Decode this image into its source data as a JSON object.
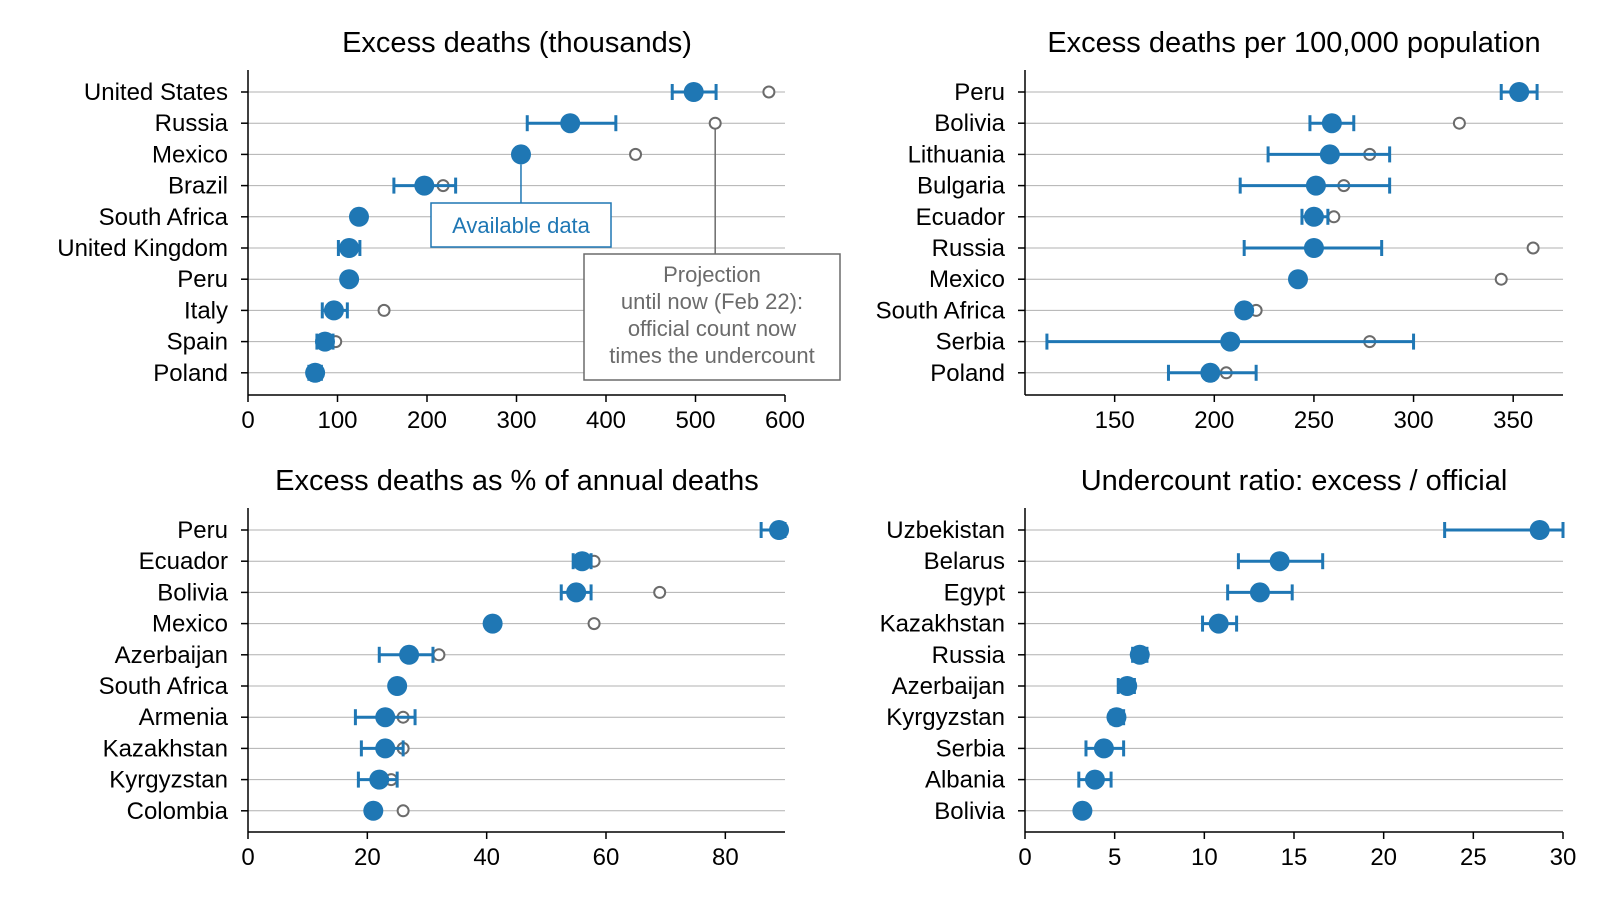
{
  "colors": {
    "available": "#1f77b4",
    "projection": "#6b6b6b",
    "grid": "#b0b0b0"
  },
  "chart_data": [
    {
      "type": "scatter",
      "title": "Excess deaths (thousands)",
      "xlim": [
        0,
        600
      ],
      "xticks": [
        0,
        100,
        200,
        300,
        400,
        500,
        600
      ],
      "categories": [
        "United States",
        "Russia",
        "Mexico",
        "Brazil",
        "South Africa",
        "United Kingdom",
        "Peru",
        "Italy",
        "Spain",
        "Poland"
      ],
      "series": [
        {
          "name": "Available data",
          "values": [
            498,
            360,
            305,
            197,
            124,
            113,
            113,
            96,
            86,
            75
          ],
          "error_low": [
            474,
            312,
            null,
            163,
            null,
            101,
            null,
            83,
            77,
            68
          ],
          "error_high": [
            523,
            411,
            null,
            232,
            null,
            125,
            null,
            111,
            95,
            82
          ]
        },
        {
          "name": "Projection until now (Feb 22): official count now times the undercount",
          "values": [
            582,
            522,
            433,
            218,
            null,
            null,
            null,
            152,
            98,
            null
          ]
        }
      ],
      "annotations": [
        {
          "text": "Available data",
          "points_to": "Mexico"
        },
        {
          "text": [
            "Projection",
            "until now (Feb 22):",
            "official count now",
            "times the undercount"
          ],
          "points_to": "Russia"
        }
      ]
    },
    {
      "type": "scatter",
      "title": "Excess deaths per 100,000 population",
      "xlim": [
        105,
        375
      ],
      "xticks": [
        150,
        200,
        250,
        300,
        350
      ],
      "categories": [
        "Peru",
        "Bolivia",
        "Lithuania",
        "Bulgaria",
        "Ecuador",
        "Russia",
        "Mexico",
        "South Africa",
        "Serbia",
        "Poland"
      ],
      "series": [
        {
          "name": "Available data",
          "values": [
            353,
            259,
            258,
            251,
            250,
            250,
            242,
            215,
            208,
            198
          ],
          "error_low": [
            344,
            248,
            227,
            213,
            244,
            215,
            null,
            null,
            116,
            177
          ],
          "error_high": [
            362,
            270,
            288,
            288,
            257,
            284,
            null,
            null,
            300,
            221
          ]
        },
        {
          "name": "Projection",
          "values": [
            null,
            323,
            278,
            265,
            260,
            360,
            344,
            221,
            278,
            206
          ]
        }
      ]
    },
    {
      "type": "scatter",
      "title": "Excess deaths as % of annual deaths",
      "xlim": [
        0,
        90
      ],
      "xticks": [
        0,
        20,
        40,
        60,
        80
      ],
      "categories": [
        "Peru",
        "Ecuador",
        "Bolivia",
        "Mexico",
        "Azerbaijan",
        "South Africa",
        "Armenia",
        "Kazakhstan",
        "Kyrgyzstan",
        "Colombia"
      ],
      "series": [
        {
          "name": "Available data",
          "values": [
            89,
            56,
            55,
            41,
            27,
            25,
            23,
            23,
            22,
            21
          ],
          "error_low": [
            86,
            54.5,
            52.5,
            null,
            22,
            null,
            18,
            19,
            18.5,
            null
          ],
          "error_high": [
            90,
            57.5,
            57.5,
            null,
            31,
            null,
            28,
            26,
            25,
            null
          ]
        },
        {
          "name": "Projection",
          "values": [
            null,
            58,
            69,
            58,
            32,
            null,
            26,
            26,
            24,
            26
          ]
        }
      ]
    },
    {
      "type": "scatter",
      "title": "Undercount ratio: excess / official",
      "xlim": [
        0,
        30
      ],
      "xticks": [
        0,
        5,
        10,
        15,
        20,
        25,
        30
      ],
      "categories": [
        "Uzbekistan",
        "Belarus",
        "Egypt",
        "Kazakhstan",
        "Russia",
        "Azerbaijan",
        "Kyrgyzstan",
        "Serbia",
        "Albania",
        "Bolivia"
      ],
      "series": [
        {
          "name": "Available data",
          "values": [
            28.7,
            14.2,
            13.1,
            10.8,
            6.4,
            5.7,
            5.1,
            4.4,
            3.9,
            3.2
          ],
          "error_low": [
            23.4,
            11.9,
            11.3,
            9.9,
            6.0,
            5.2,
            4.8,
            3.4,
            3.0,
            null
          ],
          "error_high": [
            30,
            16.6,
            14.9,
            11.8,
            6.8,
            6.1,
            5.5,
            5.5,
            4.8,
            null
          ]
        }
      ]
    }
  ]
}
